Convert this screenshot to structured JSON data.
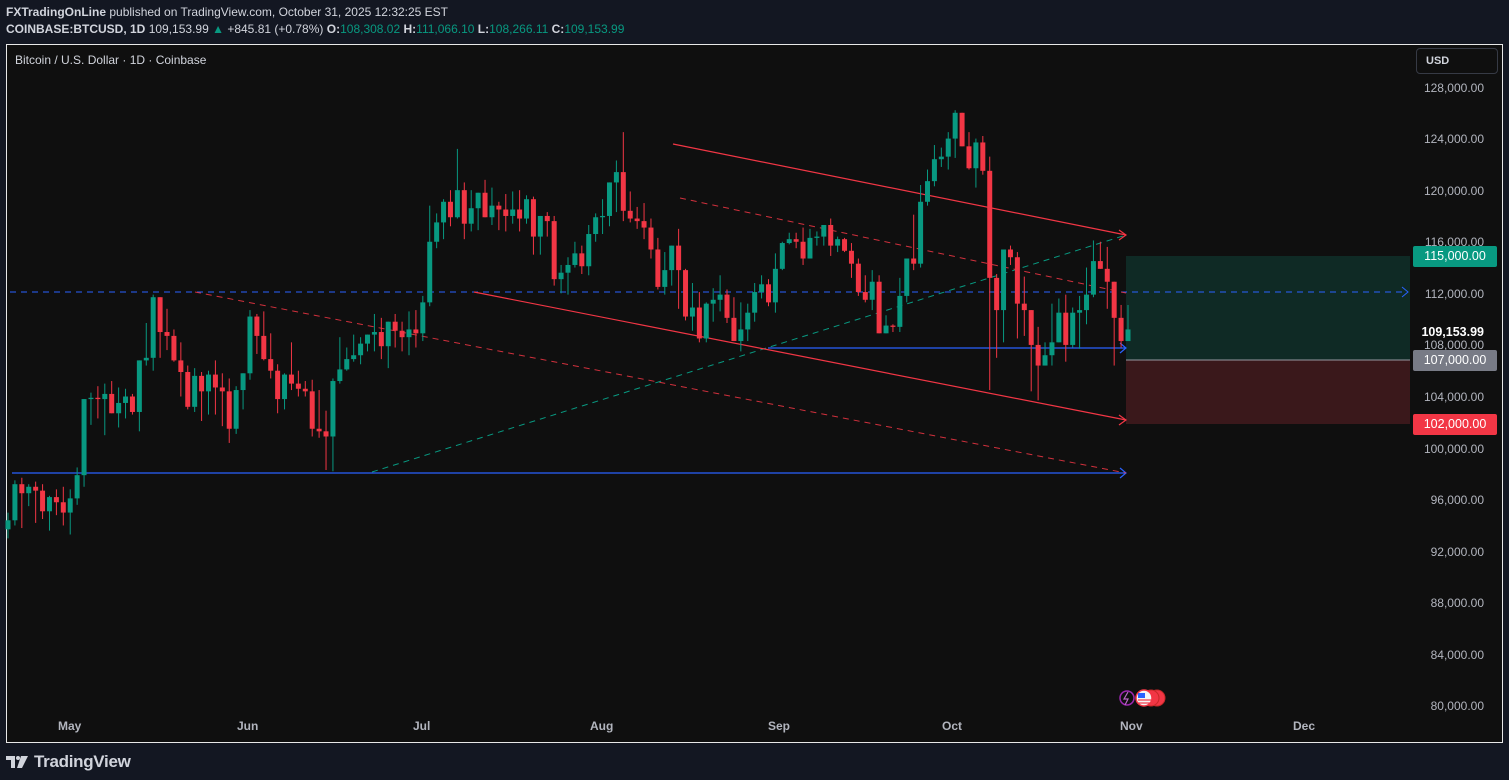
{
  "header": {
    "publisher": "FXTradingOnLine",
    "published_text": " published on TradingView.com, October 31, 2025 12:32:25 EST",
    "symbol": "COINBASE:BTCUSD, 1D",
    "last_price": "109,153.99",
    "change_arrow": "▲",
    "change": "+845.81 (+0.78%)",
    "open_label": "O:",
    "open": "108,308.02",
    "high_label": "H:",
    "high": "111,066.10",
    "low_label": "L:",
    "low": "108,266.11",
    "close_label": "C:",
    "close": "109,153.99"
  },
  "chart_title": "Bitcoin / U.S. Dollar · 1D · Coinbase",
  "currency_button": "USD",
  "colors": {
    "up": "#089981",
    "down": "#f23645",
    "background": "#0f0f0f",
    "page": "#131722",
    "blue_line": "#2962ff",
    "channel": "#f23645",
    "target_zone": "#0f2a25",
    "stop_zone": "#3a181b"
  },
  "price_axis": {
    "labels": [
      "128,000.00",
      "124,000.00",
      "120,000.00",
      "116,000.00",
      "112,000.00",
      "108,000.00",
      "104,000.00",
      "100,000.00",
      "96,000.00",
      "92,000.00",
      "88,000.00",
      "84,000.00",
      "80,000.00"
    ],
    "tags": {
      "target": "115,000.00",
      "current": "109,153.99",
      "entry": "107,000.00",
      "stop": "102,000.00"
    }
  },
  "time_axis": {
    "labels": [
      "May",
      "Jun",
      "Jul",
      "Aug",
      "Sep",
      "Oct",
      "Nov",
      "Dec"
    ]
  },
  "footer": {
    "brand": "TradingView"
  },
  "chart_data": {
    "type": "candlestick",
    "title": "Bitcoin / U.S. Dollar · 1D · Coinbase",
    "symbol": "COINBASE:BTCUSD",
    "interval": "1D",
    "xlabel": "",
    "ylabel": "USD",
    "ylim": [
      80000,
      128000
    ],
    "x_range": [
      "Apr 2025",
      "Dec 2025"
    ],
    "grid": false,
    "last": {
      "open": 108308.02,
      "high": 111066.1,
      "low": 108266.11,
      "close": 109153.99,
      "change": 845.81,
      "change_pct": 0.78
    },
    "annotations": {
      "horizontal_levels": [
        {
          "price": 112000,
          "style": "dashed",
          "color": "#2962ff"
        },
        {
          "price": 98000,
          "style": "solid",
          "color": "#2962ff"
        },
        {
          "price": 108000,
          "style": "solid",
          "color": "#2962ff"
        }
      ],
      "descending_channel": {
        "upper": [
          [
            "Aug 14",
            123800
          ],
          [
            "Oct 31",
            116700
          ]
        ],
        "lower": [
          [
            "Jul 10",
            112100
          ],
          [
            "Oct 31",
            102100
          ]
        ]
      },
      "long_position": {
        "entry": 107000,
        "target": 115000,
        "stop": 102000
      }
    },
    "candles": [
      [
        93700,
        95000,
        93000,
        94400
      ],
      [
        94400,
        97500,
        94000,
        97200
      ],
      [
        97200,
        97700,
        93800,
        96500
      ],
      [
        96500,
        97200,
        95500,
        97000
      ],
      [
        97000,
        97400,
        94200,
        96700
      ],
      [
        96700,
        97200,
        94500,
        95100
      ],
      [
        95100,
        96300,
        93600,
        96200
      ],
      [
        96200,
        96800,
        94800,
        95800
      ],
      [
        95800,
        97000,
        94000,
        95000
      ],
      [
        95000,
        96800,
        93300,
        96100
      ],
      [
        96100,
        98500,
        95600,
        97900
      ],
      [
        97900,
        99700,
        97000,
        103800
      ],
      [
        103800,
        104300,
        101800,
        103900
      ],
      [
        103900,
        104800,
        102300,
        103800
      ],
      [
        103800,
        105000,
        101000,
        104200
      ],
      [
        104200,
        105200,
        102700,
        102700
      ],
      [
        102700,
        104700,
        101600,
        103500
      ],
      [
        103500,
        104600,
        102300,
        104000
      ],
      [
        104000,
        104200,
        102600,
        102800
      ],
      [
        102800,
        105000,
        101300,
        106800
      ],
      [
        106800,
        109700,
        106400,
        107000
      ],
      [
        107000,
        111900,
        106000,
        111700
      ],
      [
        111700,
        111600,
        107000,
        109000
      ],
      [
        109000,
        110800,
        107600,
        108700
      ],
      [
        108700,
        109200,
        106700,
        106800
      ],
      [
        106800,
        108200,
        104000,
        105900
      ],
      [
        105900,
        106400,
        103000,
        103200
      ],
      [
        103200,
        106200,
        102800,
        105600
      ],
      [
        105600,
        105900,
        102100,
        104400
      ],
      [
        104400,
        106000,
        102600,
        105700
      ],
      [
        105700,
        106800,
        102600,
        104700
      ],
      [
        104700,
        105800,
        101700,
        104400
      ],
      [
        104400,
        105400,
        100400,
        101500
      ],
      [
        101500,
        104800,
        101100,
        104500
      ],
      [
        104500,
        105500,
        103000,
        105800
      ],
      [
        105800,
        110700,
        105300,
        110200
      ],
      [
        110200,
        110400,
        107300,
        108700
      ],
      [
        108700,
        110600,
        106800,
        106900
      ],
      [
        106900,
        108900,
        105400,
        106000
      ],
      [
        106000,
        106500,
        102700,
        103800
      ],
      [
        103800,
        105800,
        103000,
        105700
      ],
      [
        105700,
        108200,
        104500,
        105000
      ],
      [
        105000,
        106000,
        104000,
        104600
      ],
      [
        104600,
        105200,
        104000,
        104400
      ],
      [
        104400,
        105300,
        100900,
        101500
      ],
      [
        101500,
        104500,
        100800,
        101300
      ],
      [
        101300,
        102900,
        98300,
        100900
      ],
      [
        100900,
        105400,
        98200,
        105200
      ],
      [
        105200,
        108600,
        105000,
        106100
      ],
      [
        106100,
        107800,
        106000,
        106900
      ],
      [
        106900,
        108800,
        106700,
        107200
      ],
      [
        107200,
        108600,
        106500,
        108100
      ],
      [
        108100,
        108800,
        107500,
        108800
      ],
      [
        108800,
        110400,
        107500,
        109000
      ],
      [
        109000,
        110100,
        106900,
        107900
      ],
      [
        107900,
        109500,
        106200,
        109800
      ],
      [
        109800,
        110400,
        107800,
        109100
      ],
      [
        109100,
        109800,
        107500,
        108600
      ],
      [
        108600,
        110600,
        107200,
        109200
      ],
      [
        109200,
        110700,
        107800,
        108900
      ],
      [
        108900,
        111800,
        108300,
        111300
      ],
      [
        111300,
        118800,
        111000,
        116000
      ],
      [
        116000,
        118200,
        115500,
        117500
      ],
      [
        117500,
        119300,
        116200,
        119100
      ],
      [
        119100,
        120000,
        117200,
        117900
      ],
      [
        117900,
        123200,
        117800,
        120000
      ],
      [
        120000,
        120600,
        116200,
        117400
      ],
      [
        117400,
        120000,
        116800,
        118600
      ],
      [
        118600,
        119500,
        116900,
        119800
      ],
      [
        119800,
        120800,
        117900,
        117900
      ],
      [
        117900,
        120200,
        117300,
        118800
      ],
      [
        118800,
        119100,
        116900,
        118500
      ],
      [
        118500,
        119700,
        116800,
        118000
      ],
      [
        118000,
        119900,
        117400,
        118500
      ],
      [
        118500,
        120000,
        116800,
        117800
      ],
      [
        117800,
        119600,
        117400,
        119300
      ],
      [
        119300,
        119500,
        115000,
        116400
      ],
      [
        116400,
        117900,
        115000,
        118000
      ],
      [
        118000,
        118300,
        116400,
        117600
      ],
      [
        117600,
        118000,
        112600,
        113100
      ],
      [
        113100,
        114200,
        112000,
        113600
      ],
      [
        113600,
        114800,
        111900,
        114200
      ],
      [
        114200,
        116000,
        114000,
        115100
      ],
      [
        115100,
        115700,
        113500,
        114100
      ],
      [
        114100,
        117300,
        113400,
        116600
      ],
      [
        116600,
        118200,
        116000,
        117900
      ],
      [
        117900,
        119300,
        116600,
        118000
      ],
      [
        118000,
        119800,
        117200,
        120600
      ],
      [
        120600,
        122300,
        118300,
        121400
      ],
      [
        121400,
        124500,
        117600,
        118400
      ],
      [
        118400,
        119900,
        117500,
        117800
      ],
      [
        117800,
        118700,
        117000,
        117600
      ],
      [
        117600,
        119000,
        116200,
        117100
      ],
      [
        117100,
        117800,
        114700,
        115400
      ],
      [
        115400,
        116300,
        112300,
        112500
      ],
      [
        112500,
        115200,
        111900,
        113800
      ],
      [
        113800,
        115700,
        112600,
        115700
      ],
      [
        115700,
        117000,
        110800,
        113800
      ],
      [
        113800,
        113900,
        109900,
        110200
      ],
      [
        110200,
        112800,
        109100,
        110900
      ],
      [
        110900,
        112100,
        108200,
        108500
      ],
      [
        108500,
        111300,
        108200,
        111200
      ],
      [
        111200,
        112400,
        109800,
        111500
      ],
      [
        111500,
        113400,
        110600,
        111900
      ],
      [
        111900,
        112300,
        109700,
        110100
      ],
      [
        110100,
        111700,
        108700,
        108300
      ],
      [
        108300,
        111300,
        107500,
        109200
      ],
      [
        109200,
        111200,
        108300,
        110500
      ],
      [
        110500,
        112800,
        109800,
        112100
      ],
      [
        112100,
        113400,
        111600,
        112700
      ],
      [
        112700,
        113100,
        111000,
        111300
      ],
      [
        111300,
        115100,
        110500,
        113900
      ],
      [
        113900,
        116000,
        113800,
        115900
      ],
      [
        115900,
        116700,
        115800,
        116200
      ],
      [
        116200,
        116700,
        115500,
        116000
      ],
      [
        116000,
        117100,
        114200,
        114700
      ],
      [
        114700,
        117000,
        115000,
        116300
      ],
      [
        116300,
        116800,
        115700,
        116400
      ],
      [
        116400,
        117300,
        115700,
        117300
      ],
      [
        117300,
        117800,
        114900,
        115700
      ],
      [
        115700,
        116400,
        115200,
        116200
      ],
      [
        116200,
        116300,
        115200,
        115300
      ],
      [
        115300,
        115900,
        113200,
        114300
      ],
      [
        114300,
        114700,
        111800,
        112100
      ],
      [
        112100,
        113400,
        111300,
        111500
      ],
      [
        111500,
        113800,
        110700,
        112900
      ],
      [
        112900,
        113400,
        108900,
        108900
      ],
      [
        108900,
        110300,
        109100,
        109500
      ],
      [
        109500,
        109600,
        109000,
        109400
      ],
      [
        109400,
        113200,
        109000,
        111800
      ],
      [
        111800,
        114700,
        111300,
        114700
      ],
      [
        114700,
        118100,
        113800,
        114300
      ],
      [
        114300,
        120400,
        114000,
        119100
      ],
      [
        119100,
        121600,
        118800,
        120700
      ],
      [
        120700,
        123500,
        120300,
        122400
      ],
      [
        122400,
        123300,
        121800,
        122600
      ],
      [
        122600,
        124500,
        121600,
        124000
      ],
      [
        124000,
        126200,
        122500,
        126000
      ],
      [
        126000,
        125700,
        123800,
        123400
      ],
      [
        123400,
        124500,
        121600,
        121700
      ],
      [
        121700,
        124000,
        120200,
        123700
      ],
      [
        123700,
        124200,
        121200,
        121500
      ],
      [
        121500,
        122600,
        104500,
        113200
      ],
      [
        113200,
        113500,
        107000,
        110700
      ],
      [
        110700,
        115000,
        108200,
        115400
      ],
      [
        115400,
        115700,
        114200,
        114800
      ],
      [
        114800,
        115200,
        108500,
        111200
      ],
      [
        111200,
        113300,
        108700,
        110700
      ],
      [
        110700,
        110700,
        104400,
        108000
      ],
      [
        108000,
        109400,
        103700,
        106400
      ],
      [
        106400,
        108200,
        106800,
        107200
      ],
      [
        107200,
        111200,
        106400,
        108200
      ],
      [
        108200,
        111600,
        108200,
        110500
      ],
      [
        110500,
        111900,
        106700,
        108000
      ],
      [
        108000,
        110900,
        107800,
        110500
      ],
      [
        110500,
        111800,
        107700,
        110700
      ],
      [
        110700,
        114000,
        109600,
        111900
      ],
      [
        111900,
        116100,
        111700,
        114500
      ],
      [
        114500,
        116000,
        114300,
        113900
      ],
      [
        113900,
        115600,
        110800,
        112900
      ],
      [
        112900,
        112100,
        106400,
        110100
      ],
      [
        110100,
        111100,
        107800,
        108300
      ],
      [
        108300,
        111100,
        108300,
        109200
      ]
    ]
  }
}
